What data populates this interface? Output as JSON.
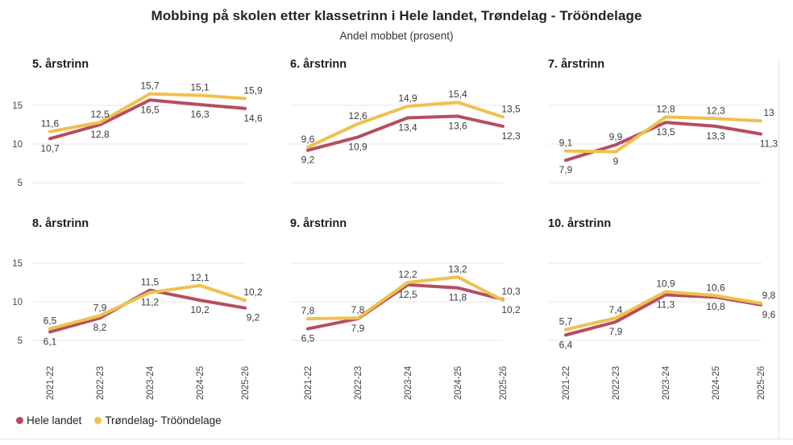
{
  "title": "Mobbing på skolen etter klassetrinn i Hele landet, Trøndelag - Trööndelage",
  "subtitle": "Andel mobbet (prosent)",
  "colors": {
    "hele_landet": "#b64d61",
    "trondelag": "#efc14d",
    "grid": "#e7e7e7",
    "data_label": "#3a3a3a",
    "tick_label": "#474747",
    "panel_title": "#1d1d1d"
  },
  "legend": {
    "items": [
      {
        "label": "Hele landet",
        "color": "#b64d61"
      },
      {
        "label": "Trøndelag- Trööndelage",
        "color": "#efc14d"
      }
    ]
  },
  "x_labels": [
    "2021-22",
    "2022-23",
    "2023-24",
    "2024-25",
    "2025-26"
  ],
  "y_ticks": [
    "15",
    "10",
    "5"
  ],
  "chart_data": [
    {
      "type": "line",
      "title": "5. årstrinn",
      "x": [
        "2021-22",
        "2022-23",
        "2023-24",
        "2024-25",
        "2025-26"
      ],
      "ylim": [
        3,
        17.5
      ],
      "series": [
        {
          "name": "Hele landet",
          "values": [
            10.7,
            12.5,
            15.7,
            15.1,
            14.6
          ]
        },
        {
          "name": "Trøndelag- Trööndelage",
          "values": [
            11.6,
            12.8,
            16.5,
            16.3,
            15.9
          ]
        }
      ],
      "data_labels": {
        "above": [
          "11,6",
          "12,5",
          "15,7",
          "15,1",
          "15,9"
        ],
        "below": [
          "10,7",
          "12,8",
          "16,5",
          "16,3",
          "14,6"
        ]
      }
    },
    {
      "type": "line",
      "title": "6. årstrinn",
      "x": [
        "2021-22",
        "2022-23",
        "2023-24",
        "2024-25",
        "2025-26"
      ],
      "ylim": [
        3,
        17.5
      ],
      "series": [
        {
          "name": "Hele landet",
          "values": [
            9.2,
            10.9,
            13.4,
            13.6,
            12.3
          ]
        },
        {
          "name": "Trøndelag- Trööndelage",
          "values": [
            9.6,
            12.6,
            14.9,
            15.4,
            13.5
          ]
        }
      ],
      "data_labels": {
        "above": [
          "9,6",
          "12,6",
          "14,9",
          "15,4",
          "13,5"
        ],
        "below": [
          "9,2",
          "10,9",
          "13,4",
          "13,6",
          "12,3"
        ]
      }
    },
    {
      "type": "line",
      "title": "7. årstrinn",
      "x": [
        "2021-22",
        "2022-23",
        "2023-24",
        "2024-25",
        "2025-26"
      ],
      "ylim": [
        3,
        17.5
      ],
      "series": [
        {
          "name": "Hele landet",
          "values": [
            7.9,
            9.9,
            12.8,
            12.3,
            11.3
          ]
        },
        {
          "name": "Trøndelag- Trööndelage",
          "values": [
            9.1,
            9.0,
            13.5,
            13.3,
            13.0
          ]
        }
      ],
      "data_labels": {
        "above": [
          "9,1",
          "9,9",
          "12,8",
          "12,3",
          "13"
        ],
        "below": [
          "7,9",
          "9",
          "13,5",
          "13,3",
          "11,3"
        ]
      }
    },
    {
      "type": "line",
      "title": "8. årstrinn",
      "x": [
        "2021-22",
        "2022-23",
        "2023-24",
        "2024-25",
        "2025-26"
      ],
      "ylim": [
        3,
        17.5
      ],
      "series": [
        {
          "name": "Hele landet",
          "values": [
            6.1,
            7.9,
            11.5,
            10.2,
            9.2
          ]
        },
        {
          "name": "Trøndelag- Trööndelage",
          "values": [
            6.5,
            8.2,
            11.2,
            12.1,
            10.2
          ]
        }
      ],
      "data_labels": {
        "above": [
          "6,5",
          "7,9",
          "11,5",
          "12,1",
          "10,2"
        ],
        "below": [
          "6,1",
          "8,2",
          "11,2",
          "10,2",
          "9,2"
        ]
      }
    },
    {
      "type": "line",
      "title": "9. årstrinn",
      "x": [
        "2021-22",
        "2022-23",
        "2023-24",
        "2024-25",
        "2025-26"
      ],
      "ylim": [
        3,
        17.5
      ],
      "series": [
        {
          "name": "Hele landet",
          "values": [
            6.5,
            7.8,
            12.2,
            11.8,
            10.3
          ]
        },
        {
          "name": "Trøndelag- Trööndelage",
          "values": [
            7.8,
            7.9,
            12.5,
            13.2,
            10.2
          ]
        }
      ],
      "data_labels": {
        "above": [
          "7,8",
          "7,8",
          "12,2",
          "13,2",
          "10,3"
        ],
        "below": [
          "6,5",
          "7,9",
          "12,5",
          "11,8",
          "10,2"
        ]
      }
    },
    {
      "type": "line",
      "title": "10. årstrinn",
      "x": [
        "2021-22",
        "2022-23",
        "2023-24",
        "2024-25",
        "2025-26"
      ],
      "ylim": [
        3,
        17.5
      ],
      "series": [
        {
          "name": "Hele landet",
          "values": [
            5.7,
            7.4,
            10.9,
            10.6,
            9.6
          ]
        },
        {
          "name": "Trøndelag- Trööndelage",
          "values": [
            6.4,
            7.9,
            11.3,
            10.8,
            9.8
          ]
        }
      ],
      "data_labels": {
        "above": [
          "5,7",
          "7,4",
          "10,9",
          "10,6",
          "9,8"
        ],
        "below": [
          "6,4",
          "7,9",
          "11,3",
          "10,8",
          "9,6"
        ]
      }
    }
  ]
}
